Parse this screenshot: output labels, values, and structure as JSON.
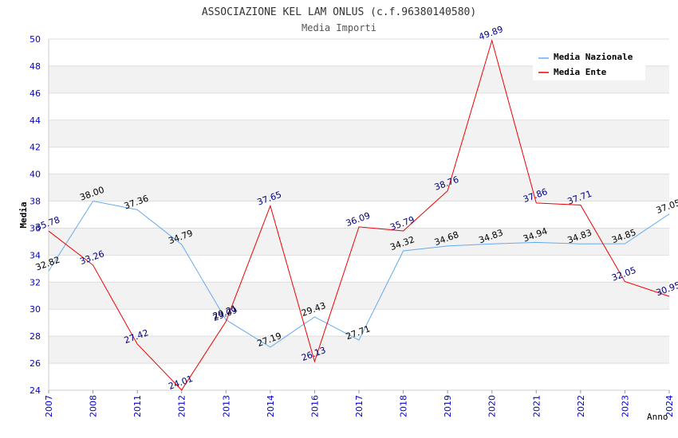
{
  "chart_data": {
    "type": "line",
    "title": "ASSOCIAZIONE KEL LAM ONLUS (c.f.96380140580)",
    "subtitle": "Media Importi",
    "xlabel": "Anno",
    "ylabel": "Media",
    "ylim": [
      24,
      50
    ],
    "ytick_step": 2,
    "grid": true,
    "legend_position": "top-right",
    "categories": [
      "2007",
      "2008",
      "2011",
      "2012",
      "2013",
      "2014",
      "2016",
      "2017",
      "2018",
      "2019",
      "2020",
      "2021",
      "2022",
      "2023",
      "2024"
    ],
    "series": [
      {
        "name": "Media Nazionale",
        "color": "#66aaee",
        "label_color": "#000000",
        "values": [
          32.82,
          38.0,
          37.36,
          34.79,
          29.21,
          27.19,
          29.43,
          27.71,
          34.32,
          34.68,
          34.83,
          34.94,
          34.83,
          34.85,
          37.05
        ],
        "labels": [
          "32.82",
          "38.00",
          "37.36",
          "34.79",
          "29.21",
          "27.19",
          "29.43",
          "27.71",
          "34.32",
          "34.68",
          "34.83",
          "34.94",
          "34.83",
          "34.85",
          "37.05"
        ]
      },
      {
        "name": "Media Ente",
        "color": "#ee0000",
        "label_color": "#000080",
        "values": [
          35.78,
          33.26,
          27.42,
          24.01,
          29.09,
          37.65,
          26.13,
          36.09,
          35.79,
          38.76,
          49.89,
          37.86,
          37.71,
          32.05,
          30.95
        ],
        "labels": [
          "35.78",
          "33.26",
          "27.42",
          "24.01",
          "29.09",
          "37.65",
          "26.13",
          "36.09",
          "35.79",
          "38.76",
          "49.89",
          "37.86",
          "37.71",
          "32.05",
          "30.95"
        ]
      }
    ],
    "colors": {
      "band": "#f2f2f2",
      "grid": "#dddddd",
      "tick_label": "#0000cc",
      "title": "#333333"
    }
  }
}
